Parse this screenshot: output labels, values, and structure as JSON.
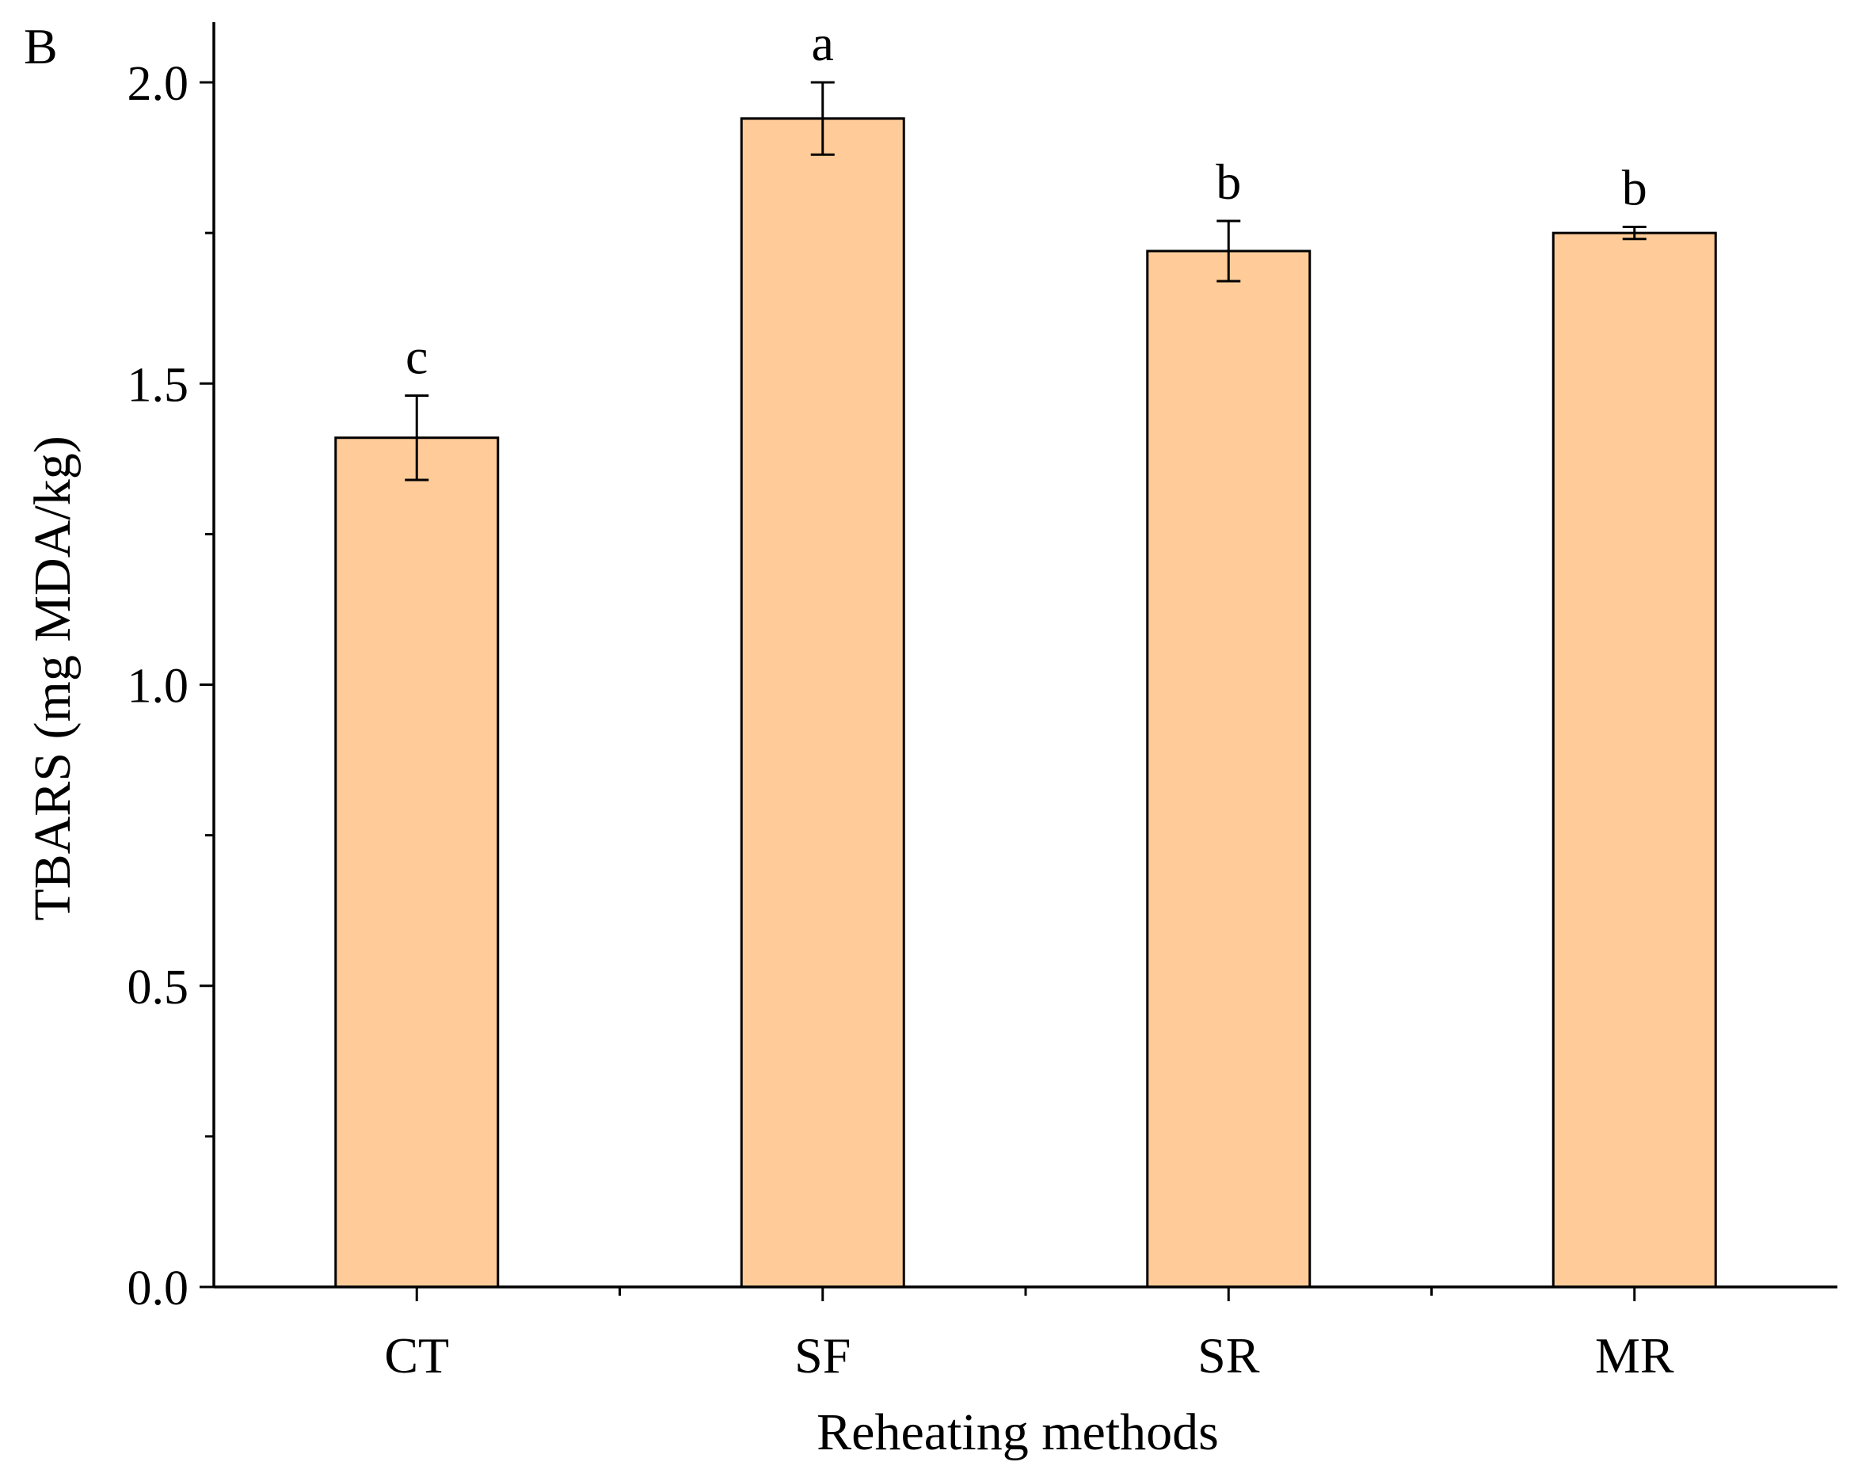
{
  "panel_label": "B",
  "chart_data": {
    "type": "bar",
    "title": "",
    "xlabel": "Reheating methods",
    "ylabel": "TBARS (mg MDA/kg)",
    "categories": [
      "CT",
      "SF",
      "SR",
      "MR"
    ],
    "values": [
      1.41,
      1.94,
      1.72,
      1.75
    ],
    "errors": [
      0.07,
      0.06,
      0.05,
      0.01
    ],
    "significance_labels": [
      "c",
      "a",
      "b",
      "b"
    ],
    "ylim": [
      0,
      2.1
    ],
    "yticks": [
      0.0,
      0.5,
      1.0,
      1.5,
      2.0
    ],
    "ytick_labels": [
      "0.0",
      "0.5",
      "1.0",
      "1.5",
      "2.0"
    ],
    "bar_color": "#FFCC99",
    "edge_color": "#000000",
    "grid": false,
    "legend": "none"
  }
}
